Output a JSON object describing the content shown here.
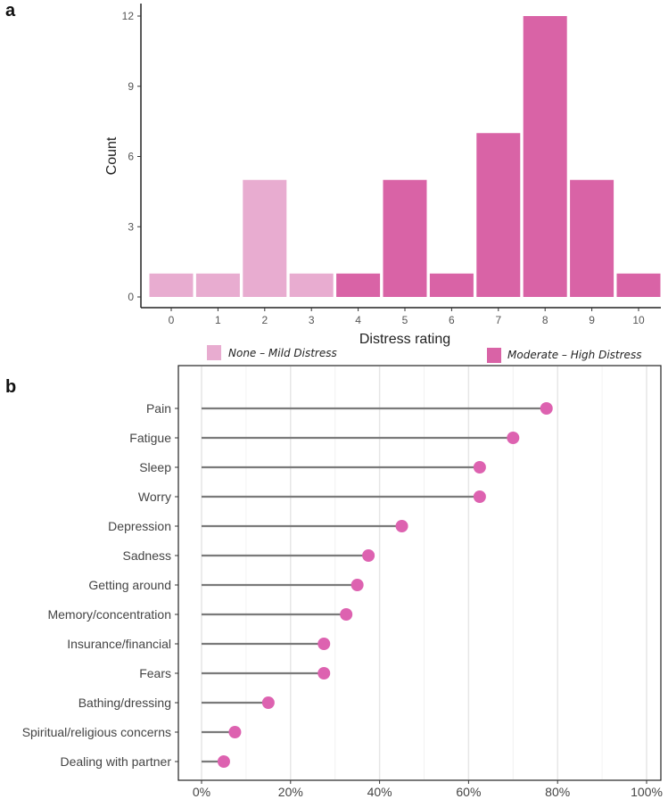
{
  "chart_data": [
    {
      "type": "bar",
      "panel_label": "a",
      "xlabel": "Distress rating",
      "ylabel": "Count",
      "categories": [
        "0",
        "1",
        "2",
        "3",
        "4",
        "5",
        "6",
        "7",
        "8",
        "9",
        "10"
      ],
      "values": [
        1,
        1,
        5,
        1,
        1,
        5,
        1,
        7,
        12,
        5,
        1
      ],
      "groups": [
        "mild",
        "mild",
        "mild",
        "mild",
        "high",
        "high",
        "high",
        "high",
        "high",
        "high",
        "high"
      ],
      "yticks": [
        "0",
        "3",
        "6",
        "9",
        "12"
      ],
      "ylim": [
        0,
        12
      ],
      "grid": false,
      "legend": [
        {
          "key": "mild",
          "label": "None – Mild Distress",
          "color": "#e8acd0"
        },
        {
          "key": "high",
          "label": "Moderate – High Distress",
          "color": "#d963a6"
        }
      ],
      "legend_position": "bottom"
    },
    {
      "type": "lollipop",
      "panel_label": "b",
      "categories": [
        "Pain",
        "Fatigue",
        "Sleep",
        "Worry",
        "Depression",
        "Sadness",
        "Getting around",
        "Memory/concentration",
        "Insurance/financial",
        "Fears",
        "Bathing/dressing",
        "Spiritual/religious concerns",
        "Dealing with partner"
      ],
      "values": [
        77.5,
        70,
        62.5,
        62.5,
        45,
        37.5,
        35,
        32.5,
        27.5,
        27.5,
        15,
        7.5,
        5
      ],
      "xticks": [
        "0%",
        "20%",
        "40%",
        "60%",
        "80%",
        "100%"
      ],
      "xlim": [
        0,
        100
      ],
      "grid": true,
      "point_color": "#dd62b0",
      "line_color": "#7a7a7a"
    }
  ]
}
